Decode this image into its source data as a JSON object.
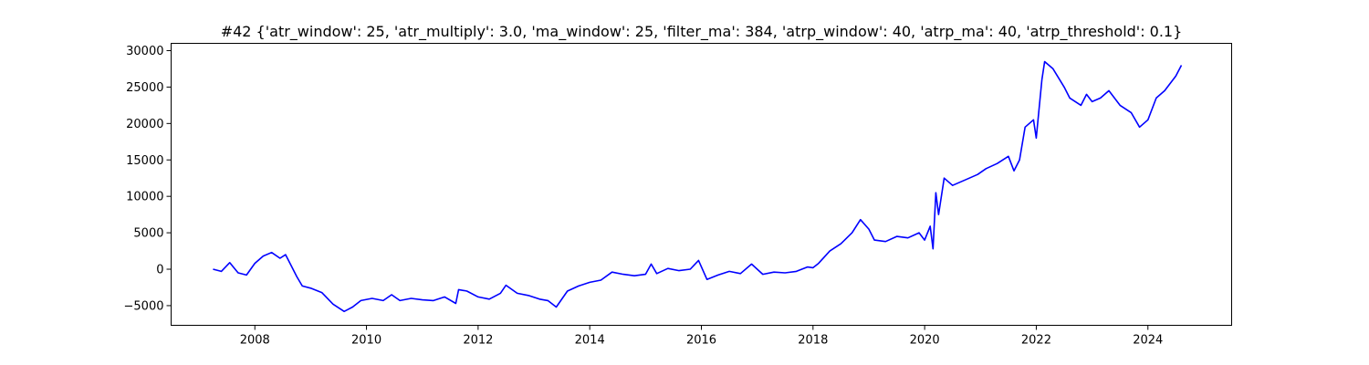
{
  "chart_data": {
    "type": "line",
    "title": "#42 {'atr_window': 25, 'atr_multiply': 3.0, 'ma_window': 25, 'filter_ma': 384, 'atrp_window': 40, 'atrp_ma': 40, 'atrp_threshold': 0.1}",
    "xlabel": "",
    "ylabel": "",
    "xlim": [
      2006.5,
      2025.5
    ],
    "ylim": [
      -7700,
      31000
    ],
    "x_ticks": [
      2008,
      2010,
      2012,
      2014,
      2016,
      2018,
      2020,
      2022,
      2024
    ],
    "x_tick_labels": [
      "2008",
      "2010",
      "2012",
      "2014",
      "2016",
      "2018",
      "2020",
      "2022",
      "2024"
    ],
    "y_ticks": [
      -5000,
      0,
      5000,
      10000,
      15000,
      20000,
      25000,
      30000
    ],
    "y_tick_labels": [
      "−5000",
      "0",
      "5000",
      "10000",
      "15000",
      "20000",
      "25000",
      "30000"
    ],
    "grid": false,
    "legend": "none",
    "series": [
      {
        "color": "#0000ff",
        "x": [
          2007.25,
          2007.4,
          2007.55,
          2007.7,
          2007.85,
          2008.0,
          2008.15,
          2008.3,
          2008.45,
          2008.55,
          2008.65,
          2008.75,
          2008.85,
          2009.0,
          2009.2,
          2009.4,
          2009.6,
          2009.75,
          2009.9,
          2010.1,
          2010.3,
          2010.45,
          2010.6,
          2010.8,
          2011.0,
          2011.2,
          2011.4,
          2011.6,
          2011.65,
          2011.8,
          2012.0,
          2012.2,
          2012.4,
          2012.5,
          2012.7,
          2012.9,
          2013.1,
          2013.25,
          2013.4,
          2013.6,
          2013.8,
          2014.0,
          2014.2,
          2014.4,
          2014.6,
          2014.8,
          2015.0,
          2015.1,
          2015.2,
          2015.4,
          2015.6,
          2015.8,
          2015.95,
          2016.1,
          2016.3,
          2016.5,
          2016.7,
          2016.9,
          2017.1,
          2017.3,
          2017.5,
          2017.7,
          2017.9,
          2018.0,
          2018.1,
          2018.3,
          2018.5,
          2018.7,
          2018.85,
          2019.0,
          2019.1,
          2019.3,
          2019.5,
          2019.7,
          2019.9,
          2020.0,
          2020.1,
          2020.15,
          2020.2,
          2020.25,
          2020.35,
          2020.5,
          2020.65,
          2020.8,
          2020.95,
          2021.1,
          2021.3,
          2021.5,
          2021.6,
          2021.7,
          2021.8,
          2021.95,
          2022.0,
          2022.1,
          2022.15,
          2022.3,
          2022.5,
          2022.6,
          2022.8,
          2022.9,
          2023.0,
          2023.15,
          2023.3,
          2023.5,
          2023.7,
          2023.85,
          2024.0,
          2024.15,
          2024.3,
          2024.5,
          2024.6
        ],
        "y": [
          0,
          -300,
          900,
          -500,
          -800,
          800,
          1800,
          2300,
          1500,
          2000,
          500,
          -1000,
          -2300,
          -2600,
          -3200,
          -4800,
          -5800,
          -5200,
          -4300,
          -4000,
          -4300,
          -3500,
          -4300,
          -4000,
          -4200,
          -4300,
          -3800,
          -4700,
          -2800,
          -3000,
          -3800,
          -4100,
          -3300,
          -2200,
          -3300,
          -3600,
          -4100,
          -4300,
          -5200,
          -3000,
          -2300,
          -1800,
          -1500,
          -400,
          -700,
          -900,
          -700,
          700,
          -600,
          100,
          -200,
          0,
          1200,
          -1400,
          -800,
          -300,
          -600,
          700,
          -700,
          -400,
          -500,
          -300,
          300,
          200,
          800,
          2500,
          3500,
          5000,
          6800,
          5500,
          4000,
          3800,
          4500,
          4300,
          5000,
          4000,
          5900,
          2800,
          10500,
          7500,
          12500,
          11500,
          12000,
          12500,
          13000,
          13800,
          14500,
          15500,
          13500,
          15000,
          19500,
          20500,
          18000,
          26000,
          28500,
          27500,
          25000,
          23500,
          22500,
          24000,
          23000,
          23500,
          24500,
          22500,
          21500,
          19500,
          20500,
          23500,
          24500,
          26500,
          28000
        ]
      }
    ]
  }
}
